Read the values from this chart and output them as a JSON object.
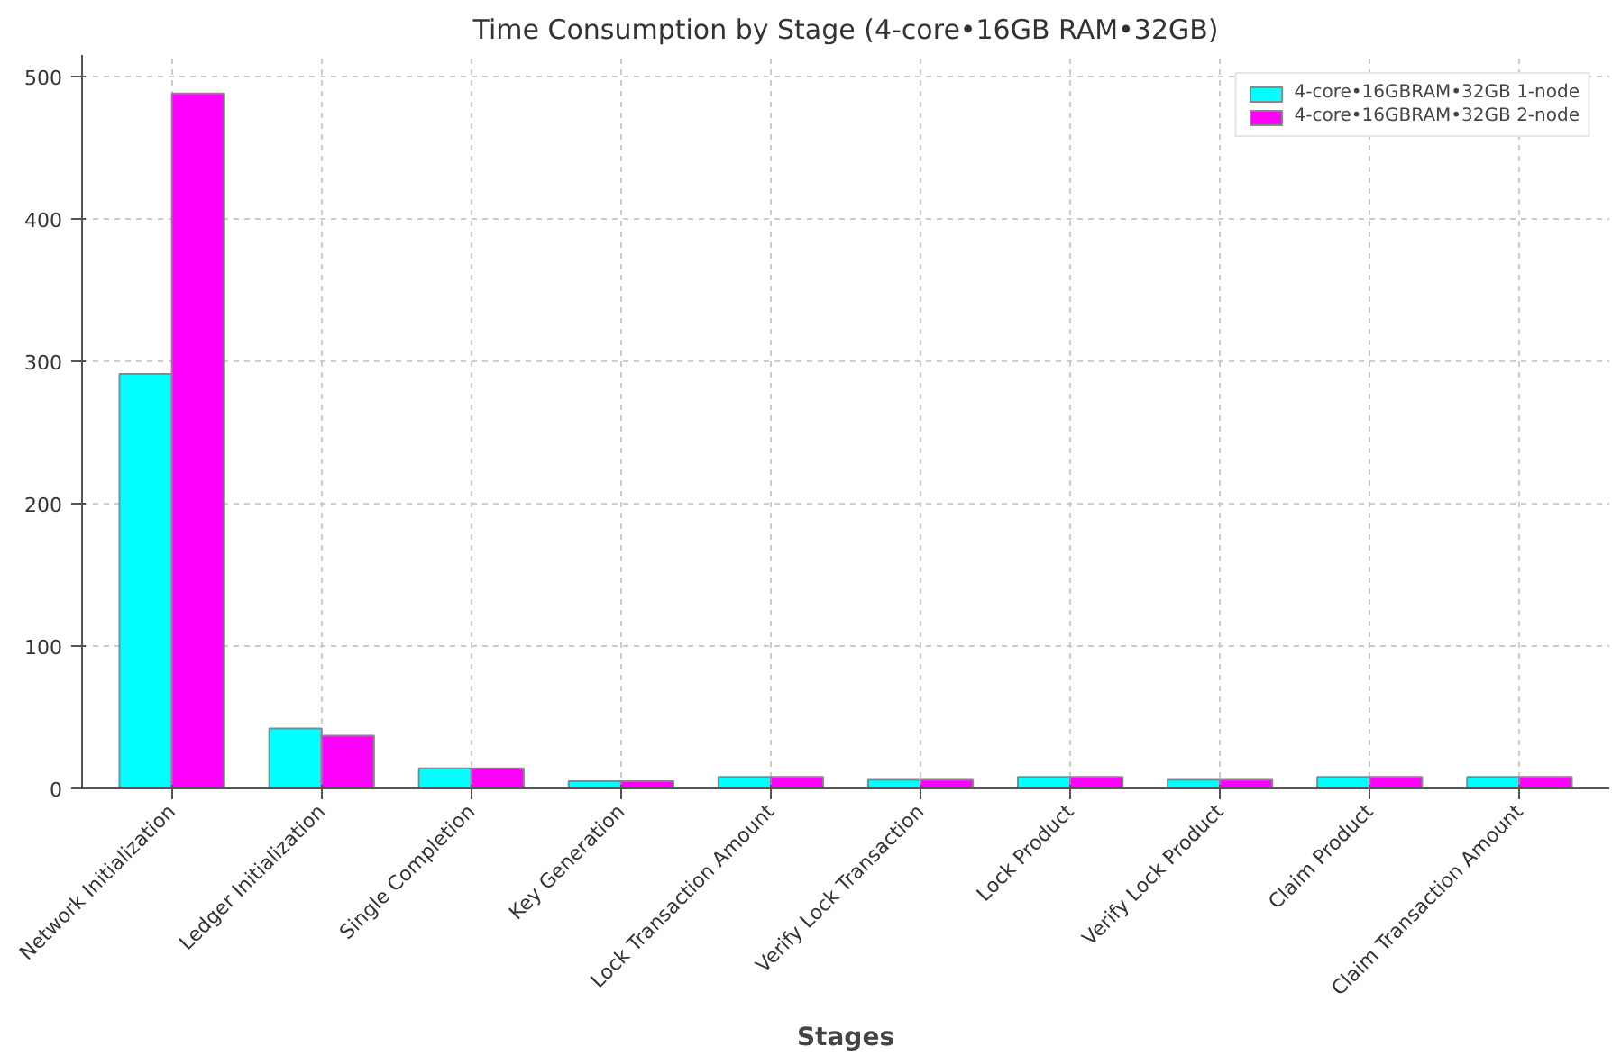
{
  "chart_data": {
    "type": "bar",
    "title": "Time Consumption by Stage (4-core•16GB RAM•32GB)",
    "xlabel": "Stages",
    "categories": [
      "Network Initialization",
      "Ledger Initialization",
      "Single Completion",
      "Key Generation",
      "Lock Transaction Amount",
      "Verify Lock Transaction",
      "Lock Product",
      "Verify Lock Product",
      "Claim Product",
      "Claim Transaction Amount"
    ],
    "series": [
      {
        "name": "4-core•16GBRAM•32GB 1-node",
        "color": "#00ffff",
        "values": [
          291,
          42,
          14,
          5,
          8,
          6,
          8,
          6,
          8,
          8
        ]
      },
      {
        "name": "4-core•16GBRAM•32GB 2-node",
        "color": "#ff00ff",
        "values": [
          488,
          37,
          14,
          5,
          8,
          6,
          8,
          6,
          8,
          8
        ]
      }
    ],
    "ylim": [
      0,
      515
    ],
    "yticks": [
      0,
      100,
      200,
      300,
      400,
      500
    ],
    "grid": true,
    "legend": "top right"
  }
}
